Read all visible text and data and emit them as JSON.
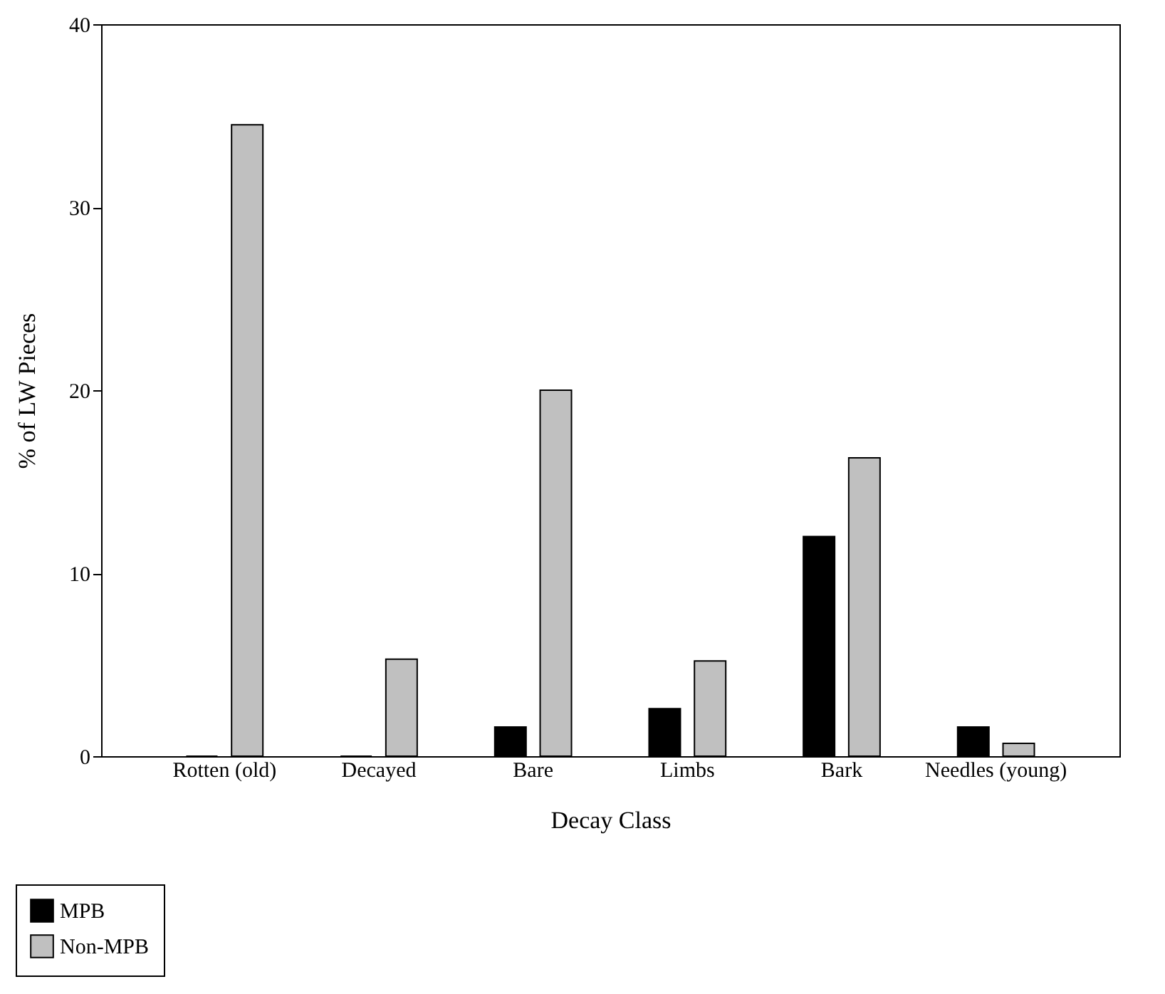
{
  "chart_data": {
    "type": "bar",
    "xlabel": "Decay Class",
    "ylabel": "% of LW Pieces",
    "categories": [
      "Rotten (old)",
      "Decayed",
      "Bare",
      "Limbs",
      "Bark",
      "Needles (young)"
    ],
    "series": [
      {
        "name": "MPB",
        "color": "#000000",
        "values": [
          0,
          0,
          1.6,
          2.6,
          12.0,
          1.6
        ]
      },
      {
        "name": "Non-MPB",
        "color": "#c0c0c0",
        "values": [
          34.5,
          5.3,
          20.0,
          5.2,
          16.3,
          0.7
        ]
      }
    ],
    "ylim": [
      0,
      40
    ],
    "yticks": [
      0,
      10,
      20,
      30,
      40
    ],
    "grid": false,
    "legend": "bottom left"
  }
}
